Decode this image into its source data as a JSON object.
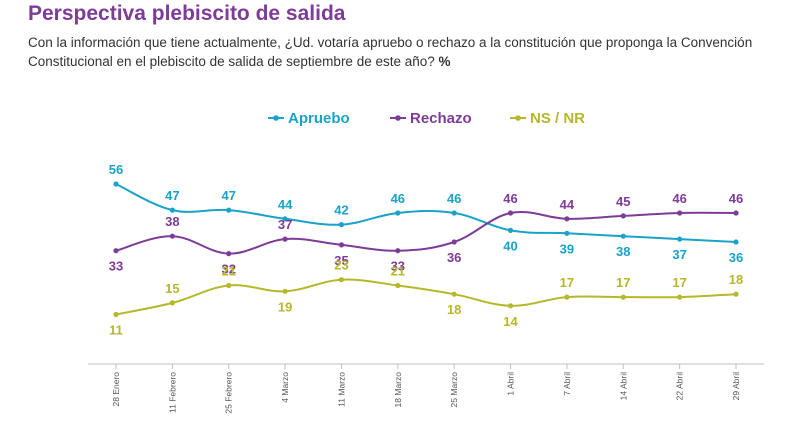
{
  "header": {
    "title": "Perspectiva plebiscito de salida",
    "question": "Con la información que tiene actualmente, ¿Ud. votaría apruebo o rechazo a la constitución que proponga la Convención Constitucional en el plebiscito de salida de septiembre de este año?",
    "unit": "%"
  },
  "chart_data": {
    "type": "line",
    "categories": [
      "28 Enero",
      "11 Febrero",
      "25 Febrero",
      "4 Marzo",
      "11 Marzo",
      "18 Marzo",
      "25 Marzo",
      "1 Abril",
      "7 Abril",
      "14 Abril",
      "22 Abril",
      "29 Abril"
    ],
    "series": [
      {
        "name": "Apruebo",
        "color": "#1aa3c8",
        "values": [
          56,
          47,
          47,
          44,
          42,
          46,
          46,
          40,
          39,
          38,
          37,
          36
        ]
      },
      {
        "name": "Rechazo",
        "color": "#7d3c98",
        "values": [
          33,
          38,
          32,
          37,
          35,
          33,
          36,
          46,
          44,
          45,
          46,
          46
        ]
      },
      {
        "name": "NS / NR",
        "color": "#b5b82a",
        "values": [
          11,
          15,
          21,
          19,
          23,
          21,
          18,
          14,
          17,
          17,
          17,
          18
        ]
      }
    ],
    "legend_position": "top",
    "grid": false,
    "ylim": [
      0,
      70
    ]
  }
}
